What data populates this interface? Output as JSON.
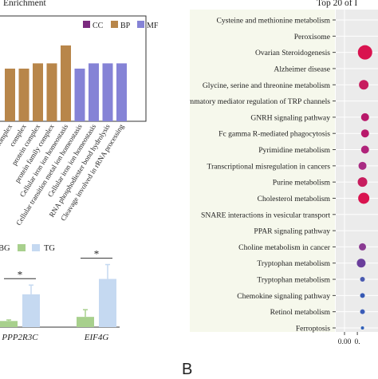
{
  "panels": {
    "go_title": "Enrichment",
    "kegg_title": "Top 20 of I",
    "kegg_letter": "B"
  },
  "chart_data": [
    {
      "type": "bar",
      "title": "Enrichment",
      "legend": {
        "placement": "top-right",
        "entries": [
          "CC",
          "BP",
          "MF"
        ]
      },
      "colors": {
        "CC": "#7b2a7f",
        "BP": "#b8864a",
        "MF": "#8583d6"
      },
      "ylim": [
        0,
        10
      ],
      "categories": [
        "complex",
        "complex",
        "protein complex",
        "protein family complex",
        "Cellular iron ion homeostasis",
        "Cellular transition metal ion homeostasis",
        "Cellular iron ion homeostasis",
        "RNA phosphodiester bond hydrolysis",
        "Cleavage involved in rRNA processing"
      ],
      "category_labels": [
        "complex",
        "complex",
        "protein complex",
        "protein family complex",
        "Cellular iron ion homeostasis",
        "Cellular transition metal ion homeostasis",
        "Cellular iron ion homeostasis",
        "RNA phosphodiester bond hydrolysis",
        "Cleavage involved in rRNA processing"
      ],
      "values": [
        5,
        5,
        5.5,
        5.5,
        7.2,
        5,
        5.5,
        5.5,
        5.5
      ],
      "groups": [
        "BP",
        "BP",
        "BP",
        "BP",
        "BP",
        "MF",
        "MF",
        "MF",
        "MF"
      ]
    },
    {
      "type": "bar",
      "legend": {
        "placement": "top-left",
        "entries": [
          "BG",
          "TG"
        ]
      },
      "colors": {
        "BG": "#a8d08d",
        "TG": "#c5d9f1"
      },
      "categories": [
        "PPP2R3C",
        "EIF4G"
      ],
      "series": [
        {
          "name": "BG",
          "values": [
            0.3,
            0.5
          ],
          "errors": [
            0.05,
            0.35
          ]
        },
        {
          "name": "TG",
          "values": [
            1.6,
            2.35
          ],
          "errors": [
            0.45,
            0.7
          ]
        }
      ],
      "ylim": [
        0,
        3.5
      ],
      "significance": [
        "*",
        "*"
      ]
    },
    {
      "type": "scatter",
      "title": "Top 20 of I",
      "categories": [
        "Cysteine and methionine metabolism",
        "Peroxisome",
        "Ovarian Steroidogenesis",
        "Alzheimer disease",
        "Glycine, serine and threonine metabolism",
        "Inflammatory mediator regulation of TRP channels",
        "GNRH signaling pathway",
        "Fc gamma R-mediated phagocytosis",
        "Pyrimidine metabolism",
        "Transcriptional misregulation in cancers",
        "Purine metabolism",
        "Cholesterol metabolism",
        "SNARE interactions in vesicular transport",
        "PPAR signaling pathway",
        "Choline metabolism in cancer",
        "Tryptophan metabolism",
        "Tryptophan metabolism",
        "Chemokine signaling pathway",
        "Retinol metabolism",
        "Ferroptosis"
      ],
      "x": [
        0.0,
        0.0,
        0.08,
        0.0,
        0.075,
        0.0,
        0.08,
        0.08,
        0.08,
        0.07,
        0.07,
        0.075,
        0.0,
        0.0,
        0.07,
        0.065,
        0.07,
        0.07,
        0.07,
        0.07
      ],
      "sizes": [
        0,
        0,
        9,
        0,
        6,
        0,
        5,
        5,
        5,
        5,
        6,
        7,
        0,
        0,
        4.5,
        5.5,
        3,
        3,
        3,
        2
      ],
      "colors": [
        "#ffffff",
        "#ffffff",
        "#d9134f",
        "#ffffff",
        "#c71d5e",
        "#ffffff",
        "#b8186a",
        "#b8186a",
        "#b0237a",
        "#a82c83",
        "#c71d5e",
        "#d9134f",
        "#ffffff",
        "#ffffff",
        "#8a3a92",
        "#6a3e9c",
        "#4a5ab0",
        "#3659b4",
        "#3a5cb8",
        "#2f5fb8"
      ],
      "x_ticks": [
        "0.00",
        "0."
      ],
      "xlim": [
        0,
        0.1
      ]
    }
  ]
}
